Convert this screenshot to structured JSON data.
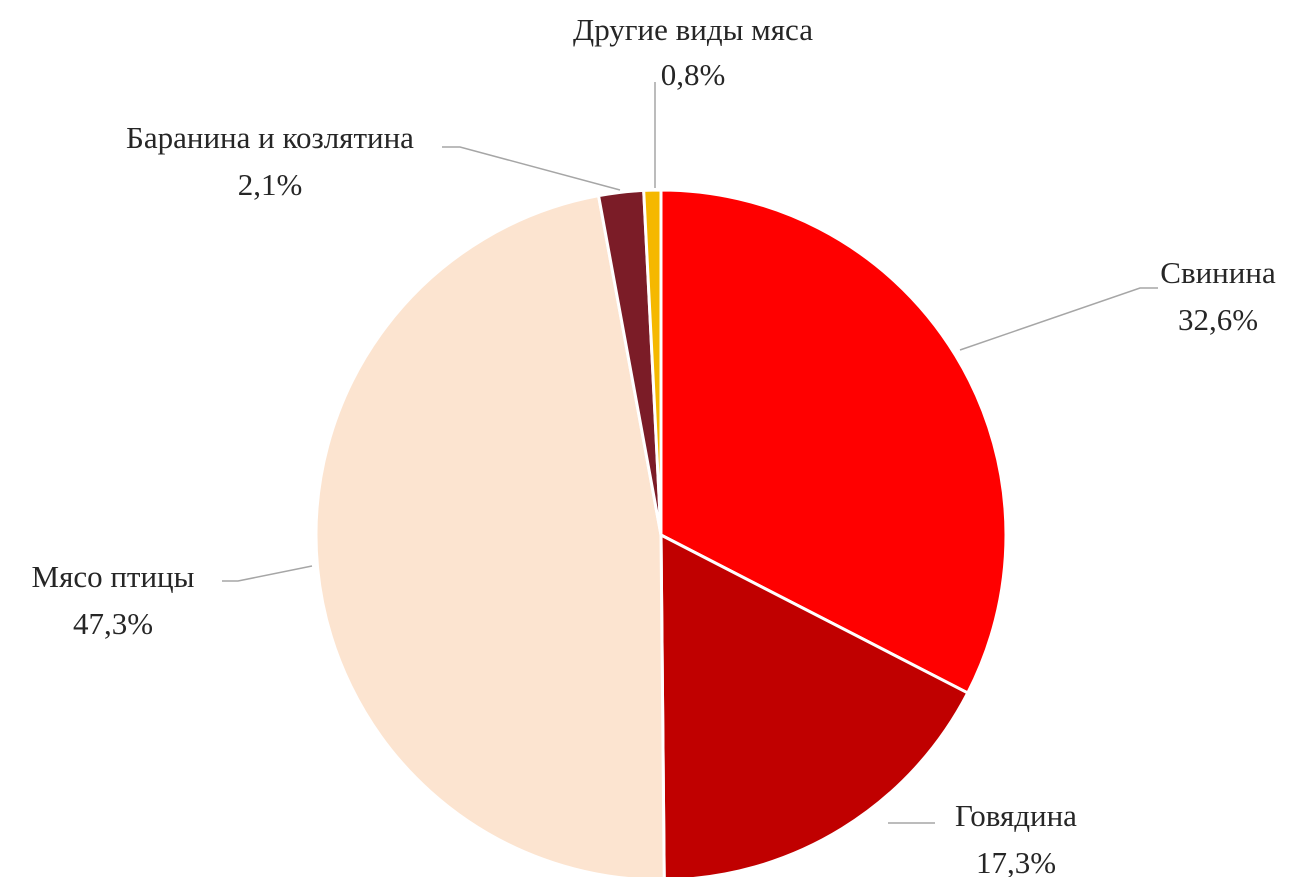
{
  "chart_data": {
    "type": "pie",
    "title": "",
    "start_angle_deg": 0,
    "direction": "clockwise",
    "slices": [
      {
        "name": "Свинина",
        "label": "Свинина",
        "value": 32.6,
        "value_label": "32,6%",
        "color": "#ff0000"
      },
      {
        "name": "Говядина",
        "label": "Говядина",
        "value": 17.3,
        "value_label": "17,3%",
        "color": "#c00000"
      },
      {
        "name": "Мясо птицы",
        "label": "Мясо птицы",
        "value": 47.3,
        "value_label": "47,3%",
        "color": "#fce4d0"
      },
      {
        "name": "Баранина и козлятина",
        "label": "Баранина и козлятина",
        "value": 2.1,
        "value_label": "2,1%",
        "color": "#7b1c27"
      },
      {
        "name": "Другие виды мяса",
        "label": "Другие виды мяса",
        "value": 0.8,
        "value_label": "0,8%",
        "color": "#f5b800"
      }
    ],
    "legend": "none",
    "data_labels": "outside-with-leader-lines"
  }
}
